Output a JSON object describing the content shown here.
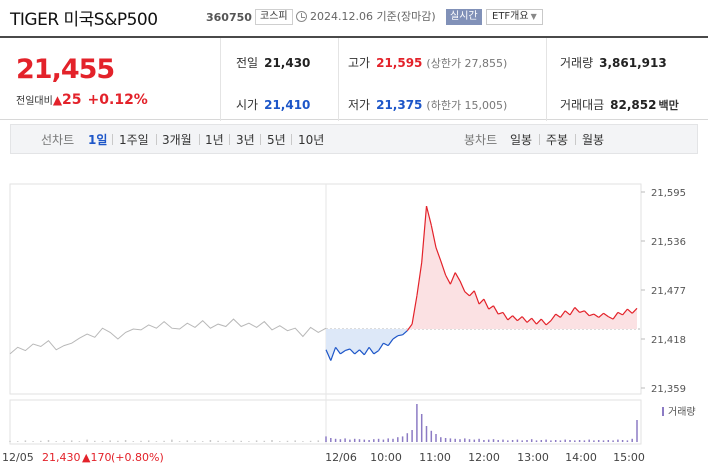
{
  "header": {
    "name": "TIGER 미국S&P500",
    "code": "360750",
    "market": "코스피",
    "date": "2024.12.06 기준(장마감)",
    "realtime": "실시간",
    "etf": "ETF개요"
  },
  "price": {
    "current": "21,455",
    "change_label": "전일대비",
    "change_value": "25",
    "change_pct": "+0.12%",
    "up_color": "#e3222a",
    "down_color": "#1d56c8"
  },
  "summary": {
    "prev_label": "전일",
    "prev": "21,430",
    "high_label": "고가",
    "high": "21,595",
    "upper_limit": "(상한가 27,855)",
    "volume_label": "거래량",
    "volume": "3,861,913",
    "open_label": "시가",
    "open": "21,410",
    "low_label": "저가",
    "low": "21,375",
    "lower_limit": "(하한가 15,005)",
    "amount_label": "거래대금",
    "amount": "82,852",
    "amount_unit": "백만"
  },
  "tabs": {
    "line_title": "선차트",
    "line_tabs": [
      "1일",
      "1주일",
      "3개월",
      "1년",
      "3년",
      "5년",
      "10년"
    ],
    "active_line_tab": "1일",
    "candle_title": "봉차트",
    "candle_tabs": [
      "일봉",
      "주봉",
      "월봉"
    ]
  },
  "chart_data": {
    "type": "line",
    "y_ticks": [
      "21,595",
      "21,536",
      "21,477",
      "21,418",
      "21,359"
    ],
    "ylim": [
      21359,
      21595
    ],
    "reference_price": 21430,
    "x_labels": [
      "12/06",
      "10:00",
      "11:00",
      "12:00",
      "13:00",
      "14:00",
      "15:00"
    ],
    "prev_day_label": "12/05",
    "prev_day_close": "21,430",
    "prev_day_change": "170",
    "prev_day_pct": "(+0.80%)",
    "volume_legend": "거래량",
    "prev_day_series": [
      21400,
      21408,
      21404,
      21412,
      21409,
      21416,
      21405,
      21410,
      21413,
      21419,
      21424,
      21420,
      21431,
      21426,
      21418,
      21426,
      21430,
      21429,
      21435,
      21431,
      21439,
      21431,
      21430,
      21437,
      21432,
      21440,
      21431,
      21436,
      21433,
      21442,
      21433,
      21437,
      21432,
      21439,
      21429,
      21434,
      21428,
      21431,
      21421,
      21432,
      21426,
      21431
    ],
    "today_series": [
      21405,
      21392,
      21408,
      21400,
      21404,
      21406,
      21400,
      21405,
      21399,
      21408,
      21400,
      21404,
      21413,
      21410,
      21418,
      21422,
      21423,
      21428,
      21436,
      21470,
      21510,
      21578,
      21555,
      21528,
      21512,
      21495,
      21484,
      21498,
      21488,
      21475,
      21470,
      21476,
      21460,
      21466,
      21454,
      21458,
      21448,
      21450,
      21441,
      21446,
      21440,
      21445,
      21438,
      21443,
      21436,
      21442,
      21435,
      21440,
      21448,
      21444,
      21452,
      21447,
      21456,
      21450,
      21452,
      21446,
      21448,
      21444,
      21449,
      21445,
      21442,
      21450,
      21447,
      21454,
      21449,
      21455
    ],
    "prev_day_volume": [
      3,
      2,
      4,
      2,
      3,
      5,
      2,
      3,
      4,
      2,
      6,
      3,
      2,
      4,
      3,
      5,
      2,
      3,
      4,
      2,
      3,
      6,
      2,
      4,
      3,
      2,
      5,
      3,
      2,
      4,
      3,
      2,
      4,
      3,
      5,
      2,
      3,
      4,
      2,
      3,
      4,
      2
    ],
    "today_volume": [
      14,
      10,
      8,
      7,
      9,
      6,
      8,
      7,
      6,
      5,
      7,
      8,
      6,
      9,
      8,
      12,
      14,
      22,
      30,
      95,
      70,
      40,
      28,
      20,
      12,
      10,
      9,
      8,
      7,
      9,
      7,
      6,
      8,
      5,
      6,
      7,
      5,
      6,
      4,
      5,
      6,
      4,
      5,
      7,
      4,
      5,
      6,
      4,
      5,
      4,
      6,
      5,
      4,
      5,
      4,
      6,
      4,
      5,
      4,
      5,
      4,
      6,
      5,
      4,
      8,
      55
    ]
  }
}
